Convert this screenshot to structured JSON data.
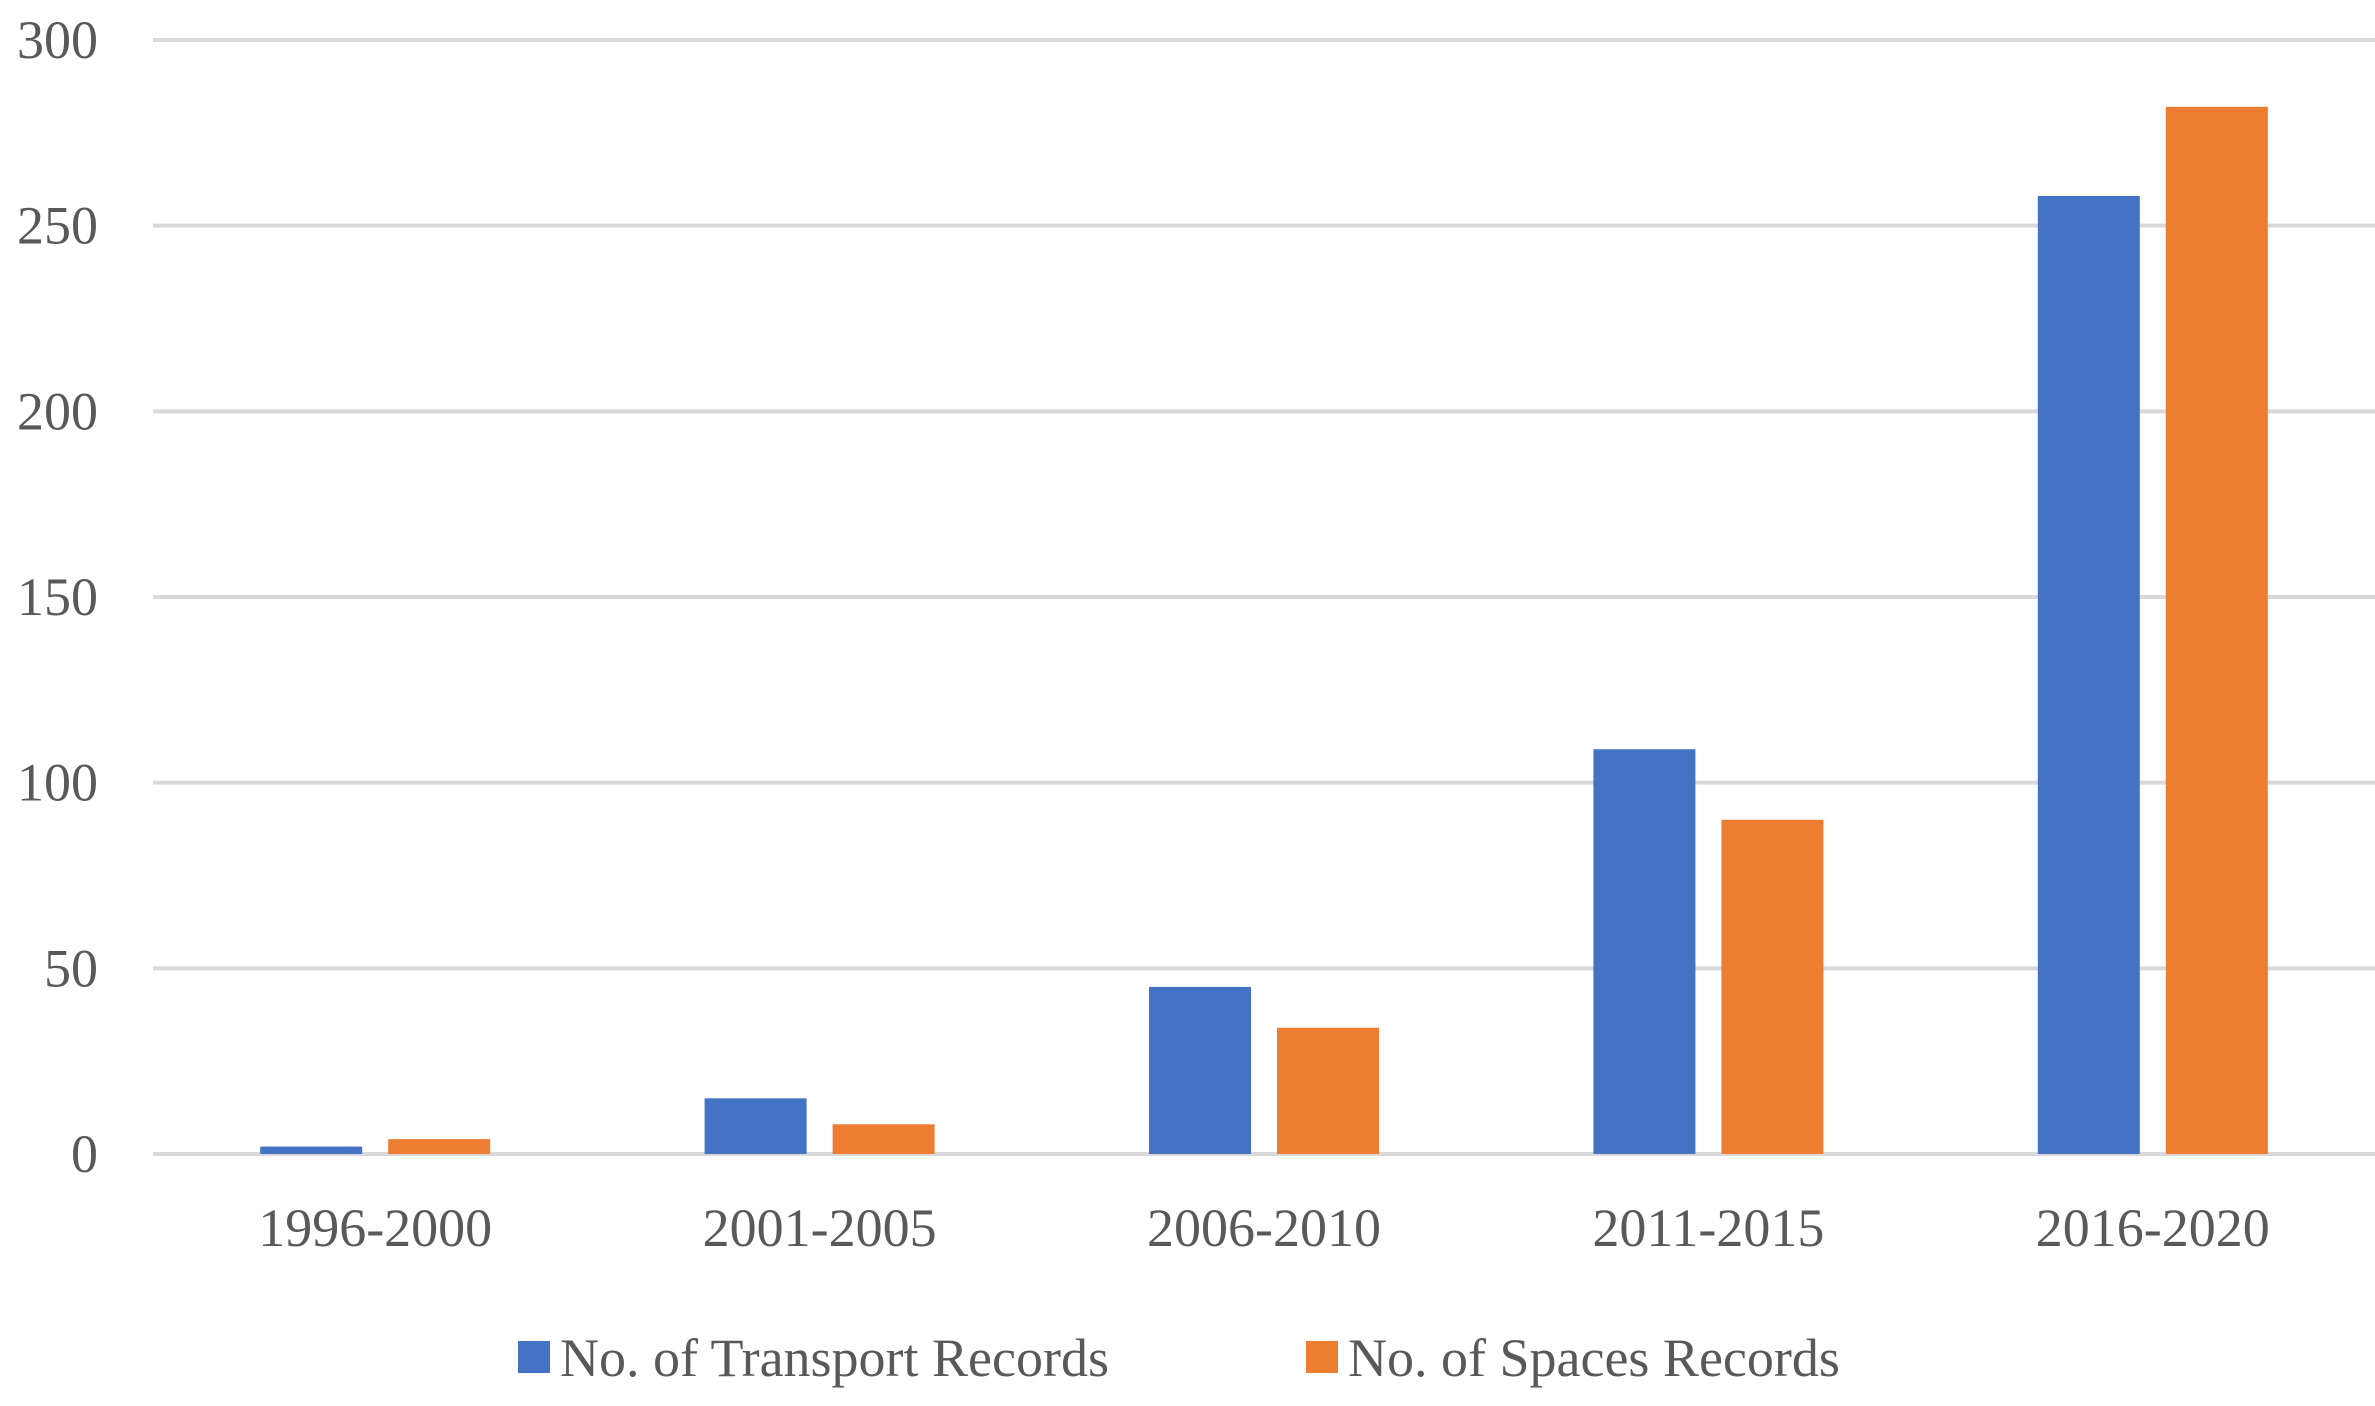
{
  "chart_data": {
    "type": "bar",
    "title": "",
    "xlabel": "",
    "ylabel": "",
    "categories": [
      "1996-2000",
      "2001-2005",
      "2006-2010",
      "2011-2015",
      "2016-2020"
    ],
    "series": [
      {
        "name": "No. of Transport Records",
        "color": "#4472c4",
        "values": [
          2,
          15,
          45,
          109,
          258
        ]
      },
      {
        "name": "No. of Spaces Records",
        "color": "#ed7d31",
        "values": [
          4,
          8,
          34,
          90,
          282
        ]
      }
    ],
    "ylim": [
      0,
      300
    ],
    "yticks": [
      0,
      50,
      100,
      150,
      200,
      250,
      300
    ],
    "grid": true,
    "legend": "bottom-center"
  }
}
